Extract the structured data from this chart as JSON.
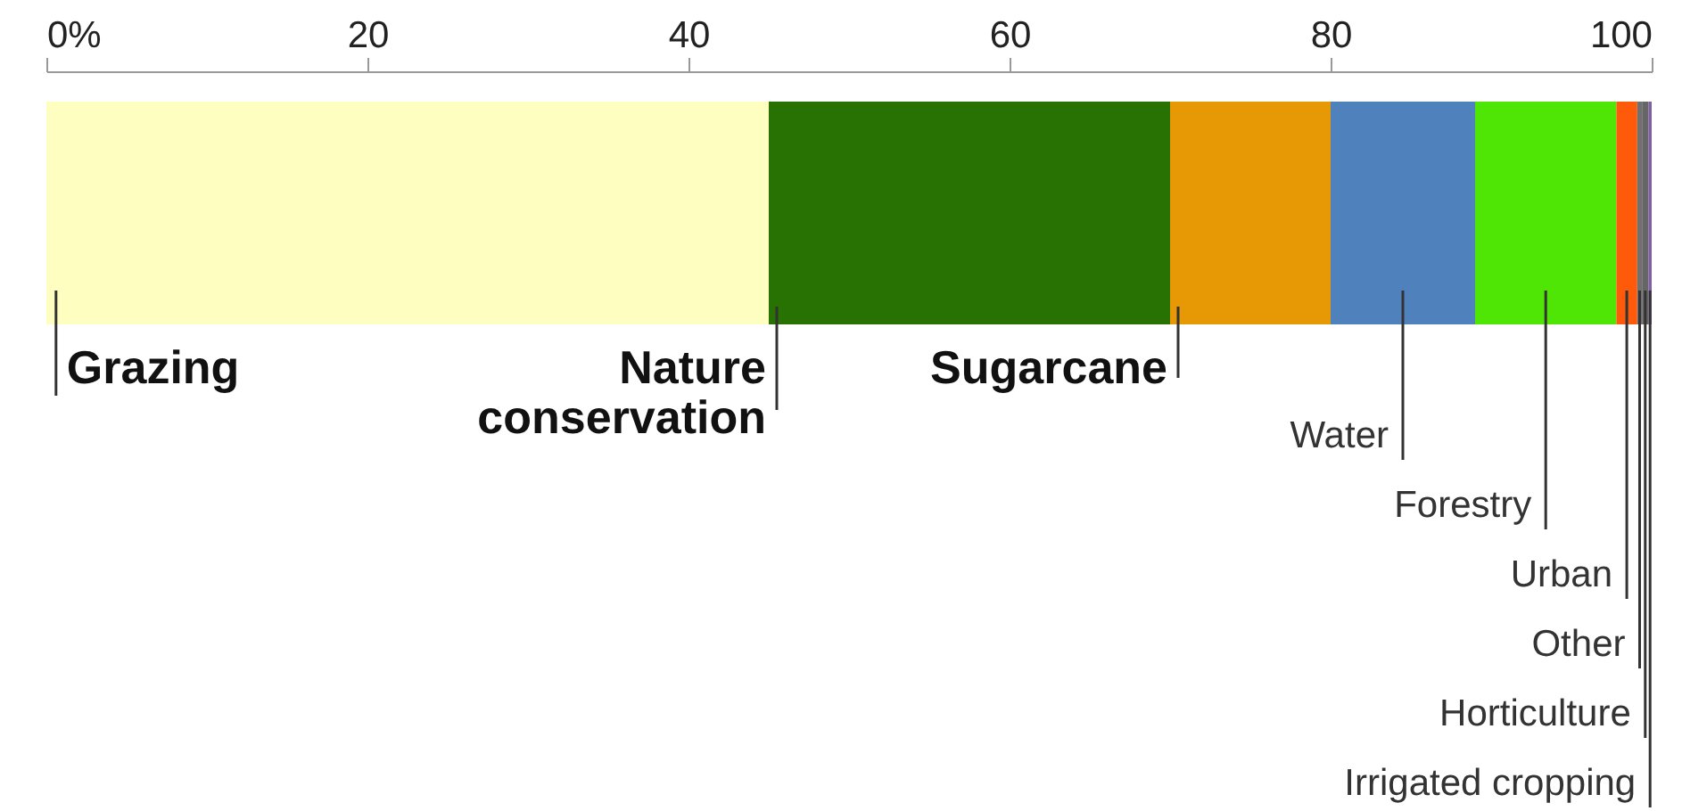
{
  "chart_data": {
    "type": "bar",
    "orientation": "horizontal",
    "stacked": true,
    "categories": [
      null
    ],
    "xlim": [
      0,
      100
    ],
    "xticks": [
      {
        "value": 0,
        "label": "0%"
      },
      20,
      40,
      60,
      80,
      100
    ],
    "series": [
      {
        "name": "Grazing",
        "color": "#fefec0",
        "values": [
          45
        ]
      },
      {
        "name": "Nature conservation",
        "color": "#277203",
        "values": [
          25
        ]
      },
      {
        "name": "Sugarcane",
        "color": "#e69805",
        "values": [
          10
        ]
      },
      {
        "name": "Water",
        "color": "#4f81bd",
        "values": [
          9
        ]
      },
      {
        "name": "Forestry",
        "color": "#4fe605",
        "values": [
          8.8
        ]
      },
      {
        "name": "Urban",
        "color": "#ff5a0a",
        "values": [
          1.3
        ]
      },
      {
        "name": "Other",
        "color": "#707070",
        "values": [
          0.3
        ]
      },
      {
        "name": "Horticulture",
        "color": "#666666",
        "values": [
          0.4
        ]
      },
      {
        "name": "Irrigated cropping",
        "color": "#8060a0",
        "values": [
          0.2
        ]
      }
    ]
  }
}
